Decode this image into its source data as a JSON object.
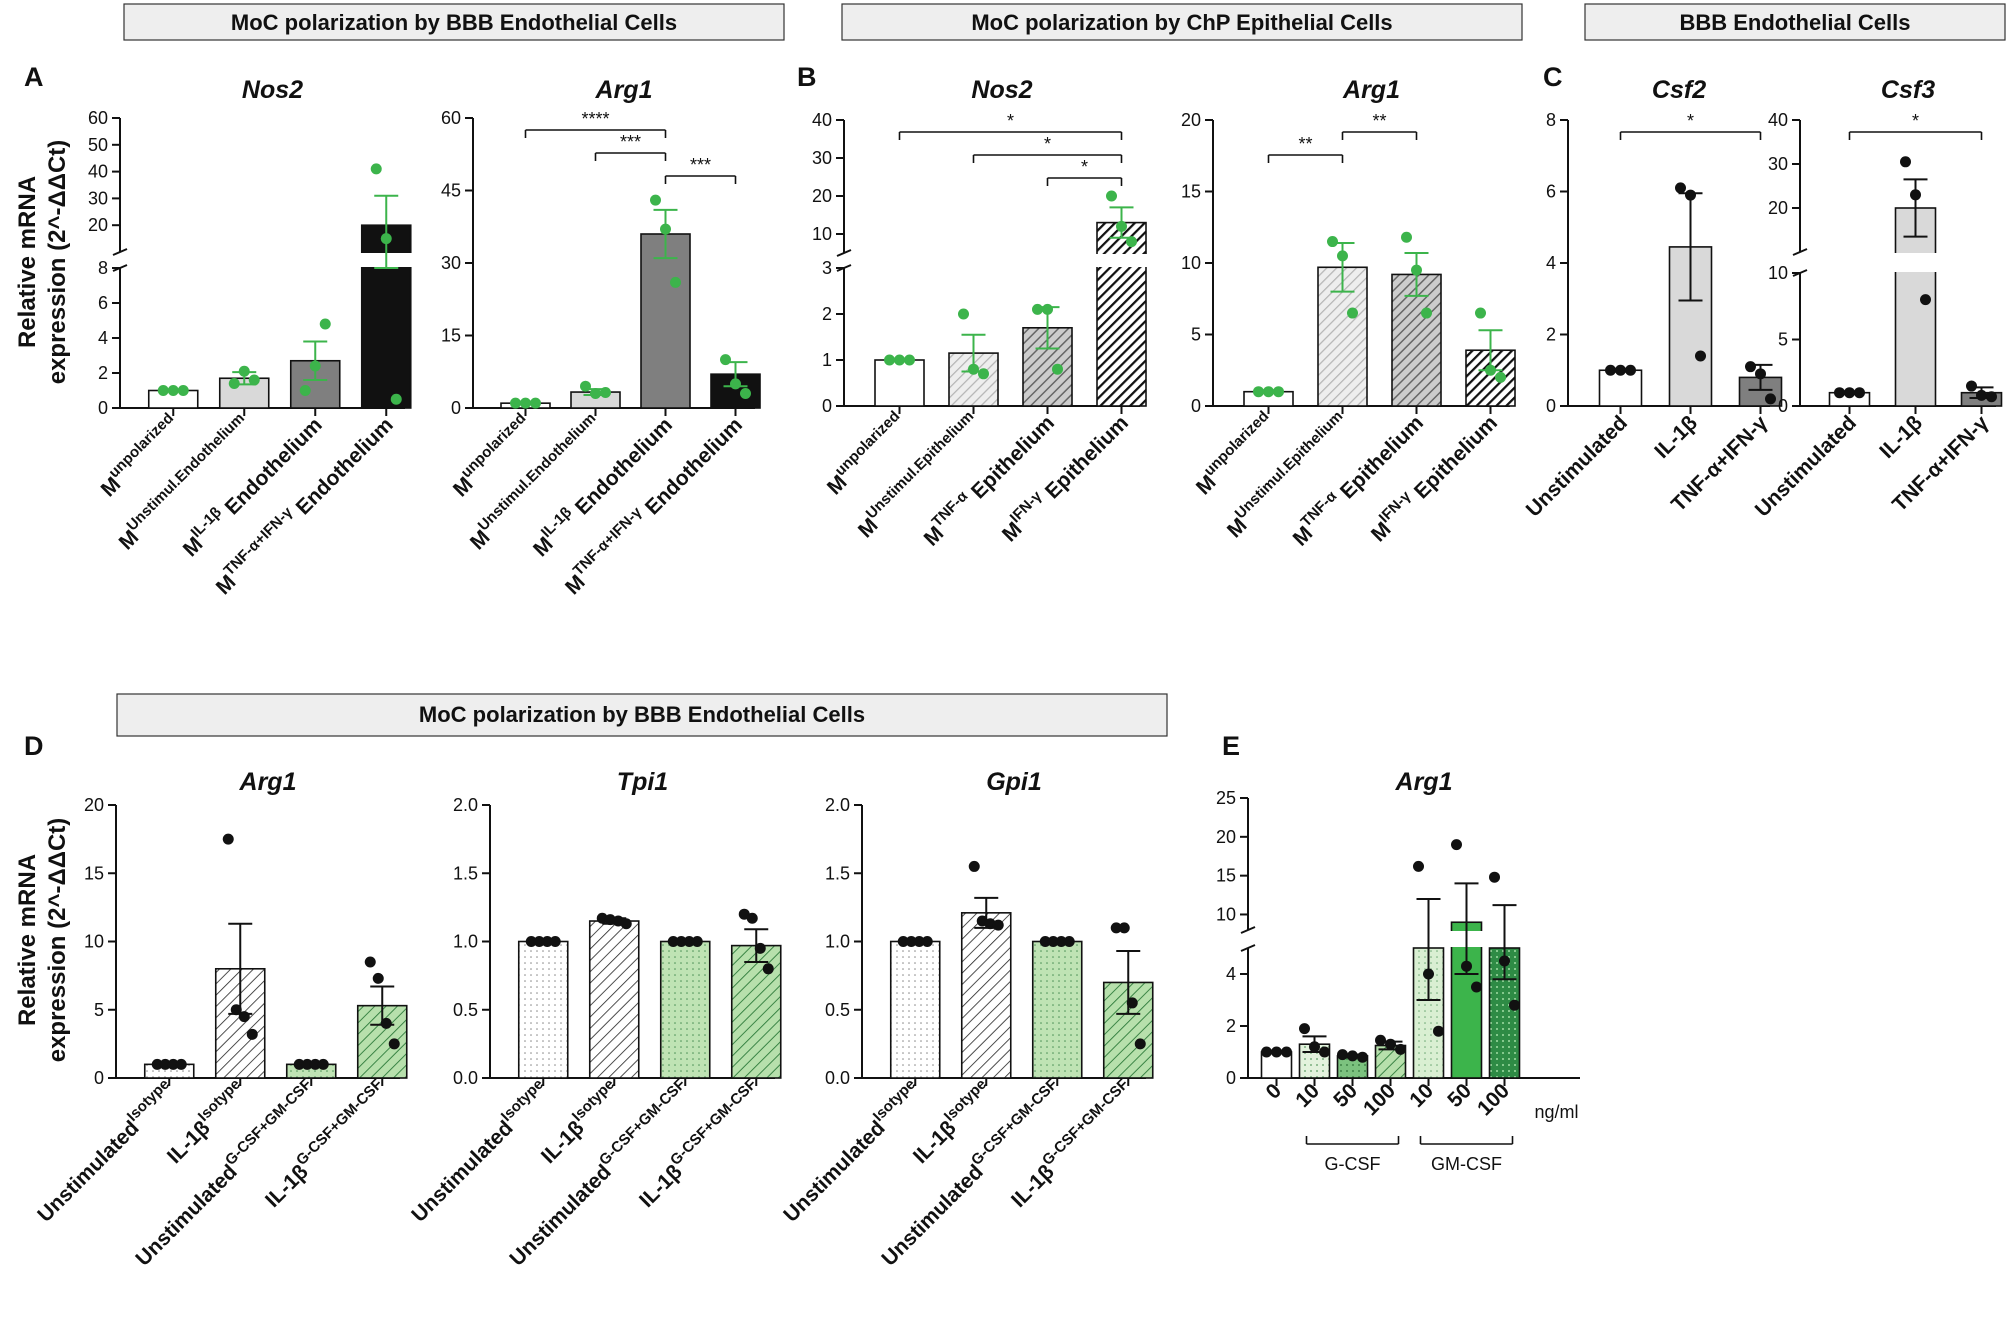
{
  "banners": [
    {
      "text": "MoC polarization by BBB Endothelial Cells"
    },
    {
      "text": "MoC polarization by ChP Epithelial Cells"
    },
    {
      "text": "BBB Endothelial Cells"
    },
    {
      "text": "MoC polarization by BBB Endothelial Cells"
    }
  ],
  "panels": [
    "A",
    "B",
    "C",
    "D",
    "E"
  ],
  "y_axis_label_line1": "Relative mRNA",
  "y_axis_label_line2": "expression (2^-ΔΔCt)",
  "colors": {
    "green_point": "#3cb44b",
    "black_point": "#111111",
    "white_bar": "#ffffff",
    "light_grey_bar": "#d9d9d9",
    "grey_bar": "#7f7f7f",
    "black_bar": "#111111",
    "light_green_bar": "#cfe8c8",
    "mid_green_bar": "#9fd38f",
    "green_bar": "#3cb44b",
    "dark_green_bar": "#1f7a36"
  },
  "chart_data": [
    {
      "id": "A1",
      "panel": "A",
      "type": "bar",
      "title": "Nos2",
      "ylabel": "Relative mRNA expression (2^-ΔΔCt)",
      "y_axis_break": {
        "lower": [
          0,
          8
        ],
        "upper": [
          10,
          60
        ]
      },
      "yticks_lower": [
        "0",
        "2",
        "4",
        "6",
        "8"
      ],
      "yticks_upper": [
        "20",
        "30",
        "40",
        "50",
        "60"
      ],
      "categories": [
        {
          "base": "M",
          "sup": "unpolarized",
          "rest": ""
        },
        {
          "base": "M",
          "sup": "Unstimul.Endothelium",
          "rest": ""
        },
        {
          "base": "M",
          "sup": "IL-1β",
          "rest": " Endothelium"
        },
        {
          "base": "M",
          "sup": "TNF-α+IFN-γ",
          "rest": " Endothelium"
        }
      ],
      "values": [
        1.0,
        1.7,
        2.7,
        20.0
      ],
      "sem": [
        0.0,
        0.35,
        1.1,
        11.0
      ],
      "points": [
        [
          1.0,
          1.0,
          1.0
        ],
        [
          1.4,
          2.1,
          1.6
        ],
        [
          1.0,
          2.4,
          4.8
        ],
        [
          41.0,
          15.0,
          0.5
        ]
      ],
      "point_color": "green",
      "fills": [
        "white",
        "lightgrey",
        "grey",
        "black"
      ],
      "significance": []
    },
    {
      "id": "A2",
      "panel": "A",
      "type": "bar",
      "title": "Arg1",
      "ylim": [
        0,
        60
      ],
      "yticks": [
        "0",
        "15",
        "30",
        "45",
        "60"
      ],
      "categories": [
        {
          "base": "M",
          "sup": "unpolarized",
          "rest": ""
        },
        {
          "base": "M",
          "sup": "Unstimul.Endothelium",
          "rest": ""
        },
        {
          "base": "M",
          "sup": "IL-1β",
          "rest": " Endothelium"
        },
        {
          "base": "M",
          "sup": "TNF-α+IFN-γ",
          "rest": " Endothelium"
        }
      ],
      "values": [
        1.0,
        3.3,
        36.0,
        7.0
      ],
      "sem": [
        0.0,
        0.6,
        5.0,
        2.5
      ],
      "points": [
        [
          1.0,
          1.0,
          1.0
        ],
        [
          4.5,
          3.0,
          3.2
        ],
        [
          43.0,
          37.0,
          26.0
        ],
        [
          10.0,
          5.0,
          3.0
        ]
      ],
      "point_color": "green",
      "fills": [
        "white",
        "lightgrey",
        "grey",
        "black"
      ],
      "significance": [
        {
          "from": 0,
          "to": 2,
          "label": "****"
        },
        {
          "from": 1,
          "to": 2,
          "label": "***"
        },
        {
          "from": 2,
          "to": 3,
          "label": "***"
        }
      ]
    },
    {
      "id": "B1",
      "panel": "B",
      "type": "bar",
      "title": "Nos2",
      "y_axis_break": {
        "lower": [
          0,
          3
        ],
        "upper": [
          5,
          40
        ]
      },
      "yticks_lower": [
        "0",
        "1",
        "2",
        "3"
      ],
      "yticks_upper": [
        "10",
        "20",
        "30",
        "40"
      ],
      "categories": [
        {
          "base": "M",
          "sup": "unpolarized",
          "rest": ""
        },
        {
          "base": "M",
          "sup": "Unstimul.Epithelium",
          "rest": ""
        },
        {
          "base": "M",
          "sup": "TNF-α",
          "rest": " Epithelium"
        },
        {
          "base": "M",
          "sup": "IFN-γ",
          "rest": " Epithelium"
        }
      ],
      "values": [
        1.0,
        1.15,
        1.7,
        13.0
      ],
      "sem": [
        0.0,
        0.4,
        0.45,
        4.0
      ],
      "points": [
        [
          1.0,
          1.0,
          1.0
        ],
        [
          2.0,
          0.8,
          0.7
        ],
        [
          2.1,
          2.1,
          0.8
        ],
        [
          20.0,
          12.0,
          8.0
        ]
      ],
      "point_color": "green",
      "fills": [
        "white",
        "lightgrey-hatch",
        "grey-hatch",
        "black-hatch"
      ],
      "significance": [
        {
          "from": 0,
          "to": 3,
          "label": "*"
        },
        {
          "from": 1,
          "to": 3,
          "label": "*"
        },
        {
          "from": 2,
          "to": 3,
          "label": "*"
        }
      ]
    },
    {
      "id": "B2",
      "panel": "B",
      "type": "bar",
      "title": "Arg1",
      "ylim": [
        0,
        20
      ],
      "yticks": [
        "0",
        "5",
        "10",
        "15",
        "20"
      ],
      "categories": [
        {
          "base": "M",
          "sup": "unpolarized",
          "rest": ""
        },
        {
          "base": "M",
          "sup": "Unstimul.Epithelium",
          "rest": ""
        },
        {
          "base": "M",
          "sup": "TNF-α",
          "rest": " Epithelium"
        },
        {
          "base": "M",
          "sup": "IFN-γ",
          "rest": " Epithelium"
        }
      ],
      "values": [
        1.0,
        9.7,
        9.2,
        3.9
      ],
      "sem": [
        0.0,
        1.7,
        1.5,
        1.4
      ],
      "points": [
        [
          1.0,
          1.0,
          1.0
        ],
        [
          11.5,
          10.5,
          6.5
        ],
        [
          11.8,
          9.5,
          6.5
        ],
        [
          6.5,
          2.5,
          2.0
        ]
      ],
      "point_color": "green",
      "fills": [
        "white",
        "lightgrey-hatch",
        "grey-hatch",
        "black-hatch"
      ],
      "significance": [
        {
          "from": 1,
          "to": 2,
          "label": "**"
        },
        {
          "from": 0,
          "to": 1,
          "label": "**"
        }
      ]
    },
    {
      "id": "C1",
      "panel": "C",
      "type": "bar",
      "title": "Csf2",
      "ylim": [
        0,
        8
      ],
      "yticks": [
        "0",
        "2",
        "4",
        "6",
        "8"
      ],
      "categories": [
        {
          "base": "Unstimulated",
          "sup": "",
          "rest": ""
        },
        {
          "base": "IL-1β",
          "sup": "",
          "rest": ""
        },
        {
          "base": "TNF-α+IFN-γ",
          "sup": "",
          "rest": ""
        }
      ],
      "values": [
        1.0,
        4.45,
        0.8
      ],
      "sem": [
        0.0,
        1.5,
        0.35
      ],
      "points": [
        [
          1.0,
          1.0,
          1.0
        ],
        [
          6.1,
          5.9,
          1.4
        ],
        [
          1.1,
          0.9,
          0.2
        ]
      ],
      "point_color": "black",
      "fills": [
        "white",
        "lightgrey",
        "grey"
      ],
      "significance": [
        {
          "from": 0,
          "to": 2,
          "label": "*"
        }
      ]
    },
    {
      "id": "C2",
      "panel": "C",
      "type": "bar",
      "title": "Csf3",
      "y_axis_break": {
        "lower": [
          0,
          10
        ],
        "upper": [
          10,
          40
        ]
      },
      "yticks_lower": [
        "0",
        "5",
        "10"
      ],
      "yticks_upper": [
        "20",
        "30",
        "40"
      ],
      "categories": [
        {
          "base": "Unstimulated",
          "sup": "",
          "rest": ""
        },
        {
          "base": "IL-1β",
          "sup": "",
          "rest": ""
        },
        {
          "base": "TNF-α+IFN-γ",
          "sup": "",
          "rest": ""
        }
      ],
      "values": [
        1.0,
        20.0,
        1.0
      ],
      "sem": [
        0.0,
        6.5,
        0.4
      ],
      "points": [
        [
          1.0,
          1.0,
          1.0
        ],
        [
          30.5,
          23.0,
          8.0
        ],
        [
          1.5,
          0.8,
          0.7
        ]
      ],
      "point_color": "black",
      "fills": [
        "white",
        "lightgrey",
        "grey"
      ],
      "significance": [
        {
          "from": 0,
          "to": 2,
          "label": "*"
        }
      ]
    },
    {
      "id": "D1",
      "panel": "D",
      "type": "bar",
      "title": "Arg1",
      "ylim": [
        0,
        20
      ],
      "yticks": [
        "0",
        "5",
        "10",
        "15",
        "20"
      ],
      "categories": [
        {
          "base": "Unstimulated",
          "sup": "Isotype",
          "rest": ""
        },
        {
          "base": "IL-1β",
          "sup": "Isotype",
          "rest": ""
        },
        {
          "base": "Unstimulated",
          "sup": "G-CSF+GM-CSF",
          "rest": ""
        },
        {
          "base": "IL-1β",
          "sup": "G-CSF+GM-CSF",
          "rest": ""
        }
      ],
      "values": [
        1.0,
        8.0,
        1.0,
        5.3
      ],
      "sem": [
        0.0,
        3.3,
        0.0,
        1.4
      ],
      "points": [
        [
          1.0,
          1.0,
          1.0,
          1.0
        ],
        [
          17.5,
          5.0,
          4.5,
          3.2
        ],
        [
          1.0,
          1.0,
          1.0,
          1.0
        ],
        [
          8.5,
          7.3,
          4.0,
          2.5
        ]
      ],
      "point_color": "black",
      "fills": [
        "dotted-white",
        "hatch-white",
        "dotted-green",
        "hatch-green"
      ],
      "significance": []
    },
    {
      "id": "D2",
      "panel": "D",
      "type": "bar",
      "title": "Tpi1",
      "ylim": [
        0,
        2.0
      ],
      "yticks": [
        "0.0",
        "0.5",
        "1.0",
        "1.5",
        "2.0"
      ],
      "categories": [
        {
          "base": "Unstimulated",
          "sup": "Isotype",
          "rest": ""
        },
        {
          "base": "IL-1β",
          "sup": "Isotype",
          "rest": ""
        },
        {
          "base": "Unstimulated",
          "sup": "G-CSF+GM-CSF",
          "rest": ""
        },
        {
          "base": "IL-1β",
          "sup": "G-CSF+GM-CSF",
          "rest": ""
        }
      ],
      "values": [
        1.0,
        1.15,
        1.0,
        0.97
      ],
      "sem": [
        0.0,
        0.02,
        0.0,
        0.12
      ],
      "points": [
        [
          1.0,
          1.0,
          1.0,
          1.0
        ],
        [
          1.17,
          1.16,
          1.15,
          1.13
        ],
        [
          1.0,
          1.0,
          1.0,
          1.0
        ],
        [
          1.2,
          1.17,
          0.95,
          0.8
        ]
      ],
      "point_color": "black",
      "fills": [
        "dotted-white",
        "hatch-white",
        "dotted-green",
        "hatch-green"
      ],
      "significance": []
    },
    {
      "id": "D3",
      "panel": "D",
      "type": "bar",
      "title": "Gpi1",
      "ylim": [
        0,
        2.0
      ],
      "yticks": [
        "0.0",
        "0.5",
        "1.0",
        "1.5",
        "2.0"
      ],
      "categories": [
        {
          "base": "Unstimulated",
          "sup": "Isotype",
          "rest": ""
        },
        {
          "base": "IL-1β",
          "sup": "Isotype",
          "rest": ""
        },
        {
          "base": "Unstimulated",
          "sup": "G-CSF+GM-CSF",
          "rest": ""
        },
        {
          "base": "IL-1β",
          "sup": "G-CSF+GM-CSF",
          "rest": ""
        }
      ],
      "values": [
        1.0,
        1.21,
        1.0,
        0.7
      ],
      "sem": [
        0.0,
        0.11,
        0.0,
        0.23
      ],
      "points": [
        [
          1.0,
          1.0,
          1.0,
          1.0
        ],
        [
          1.55,
          1.15,
          1.13,
          1.12
        ],
        [
          1.0,
          1.0,
          1.0,
          1.0
        ],
        [
          1.1,
          1.1,
          0.55,
          0.25
        ]
      ],
      "point_color": "black",
      "fills": [
        "dotted-white",
        "hatch-white",
        "dotted-green",
        "hatch-green"
      ],
      "significance": []
    },
    {
      "id": "E1",
      "panel": "E",
      "type": "bar",
      "title": "Arg1",
      "y_axis_break": {
        "lower": [
          0,
          5
        ],
        "upper": [
          8,
          25
        ]
      },
      "yticks_lower": [
        "0",
        "2",
        "4"
      ],
      "yticks_upper": [
        "10",
        "15",
        "20",
        "25"
      ],
      "categories": [
        "0",
        "10",
        "50",
        "100",
        "10",
        "50",
        "100"
      ],
      "unit_label": "ng/ml",
      "groups": [
        {
          "label": "G-CSF",
          "from": 1,
          "to": 3
        },
        {
          "label": "GM-CSF",
          "from": 4,
          "to": 6
        }
      ],
      "values": [
        1.0,
        1.3,
        0.85,
        1.25,
        7.5,
        9.0,
        7.5
      ],
      "sem": [
        0.0,
        0.3,
        0.05,
        0.15,
        4.5,
        5.0,
        3.7
      ],
      "points": [
        [
          1.0,
          1.0,
          1.0
        ],
        [
          1.9,
          1.2,
          1.0
        ],
        [
          0.9,
          0.85,
          0.8
        ],
        [
          1.45,
          1.3,
          1.1
        ],
        [
          16.2,
          4.0,
          1.8
        ],
        [
          19.0,
          4.3,
          3.5
        ],
        [
          14.8,
          4.5,
          2.8
        ]
      ],
      "point_color": "black",
      "fills": [
        "white",
        "dotted-lightgreen",
        "dotted-midgreen",
        "hatch-green",
        "dotted-palegreen",
        "green",
        "dotted-darkgreen"
      ],
      "significance": []
    }
  ]
}
